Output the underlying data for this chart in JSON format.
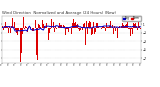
{
  "title_line1": "Wind Direction  Normalized and Average (24 Hours) (New)",
  "bg_color": "#ffffff",
  "grid_color": "#bbbbbb",
  "bar_color": "#dd0000",
  "avg_color": "#0000cc",
  "n_points": 300,
  "seed": 7,
  "ylim_min": -8,
  "ylim_max": 3,
  "ytick_values": [
    -7,
    -5,
    -3,
    -1,
    1
  ],
  "legend_labels": [
    "Avg",
    "Norm"
  ],
  "legend_colors": [
    "#0000cc",
    "#dd0000"
  ],
  "title_fontsize": 2.8,
  "tick_fontsize": 2.0,
  "n_xticks": 22
}
